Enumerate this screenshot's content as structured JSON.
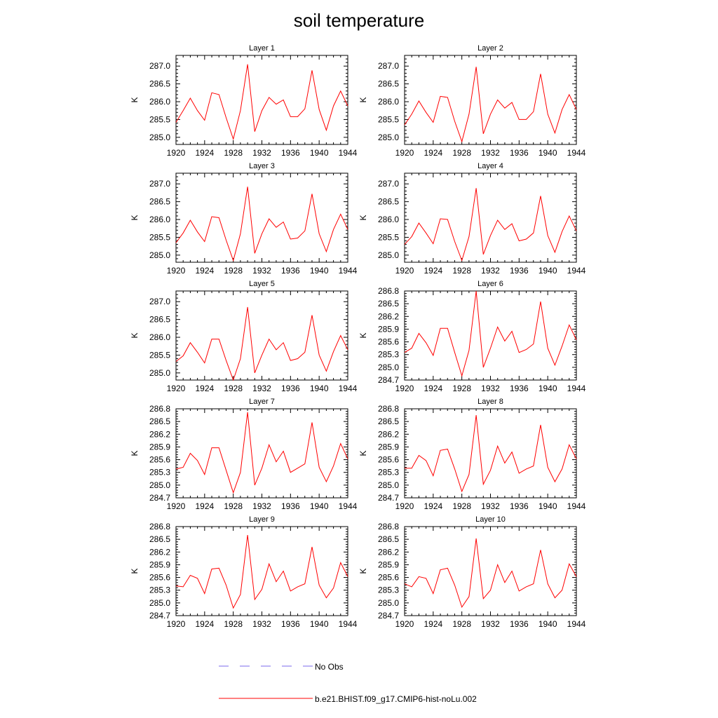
{
  "title": "soil temperature",
  "colors": {
    "model": "#ff0000",
    "obs": "#7b68ee"
  },
  "legend": {
    "obs_label": "No Obs",
    "model_label": "b.e21.BHIST.f09_g17.CMIP6-hist-noLu.002"
  },
  "chart_data": [
    {
      "type": "line",
      "title": "Layer 1",
      "ylabel": "K",
      "x": [
        1920,
        1921,
        1922,
        1923,
        1924,
        1925,
        1926,
        1927,
        1928,
        1929,
        1930,
        1931,
        1932,
        1933,
        1934,
        1935,
        1936,
        1937,
        1938,
        1939,
        1940,
        1941,
        1942,
        1943,
        1944
      ],
      "xticks": [
        1920,
        1924,
        1928,
        1932,
        1936,
        1940,
        1944
      ],
      "xlim": [
        1920,
        1944
      ],
      "yticks": [
        "285.0",
        "285.5",
        "286.0",
        "286.5",
        "287.0"
      ],
      "ylim": [
        284.8,
        287.3
      ],
      "series": [
        {
          "values": [
            285.42,
            285.75,
            286.1,
            285.75,
            285.48,
            286.25,
            286.2,
            285.55,
            284.95,
            285.75,
            287.05,
            285.16,
            285.75,
            286.12,
            285.93,
            286.05,
            285.58,
            285.58,
            285.8,
            286.88,
            285.78,
            285.2,
            285.88,
            286.3,
            285.88
          ]
        }
      ]
    },
    {
      "type": "line",
      "title": "Layer 2",
      "ylabel": "K",
      "x": [
        1920,
        1921,
        1922,
        1923,
        1924,
        1925,
        1926,
        1927,
        1928,
        1929,
        1930,
        1931,
        1932,
        1933,
        1934,
        1935,
        1936,
        1937,
        1938,
        1939,
        1940,
        1941,
        1942,
        1943,
        1944
      ],
      "xticks": [
        1920,
        1924,
        1928,
        1932,
        1936,
        1940,
        1944
      ],
      "xlim": [
        1920,
        1944
      ],
      "yticks": [
        "285.0",
        "285.5",
        "286.0",
        "286.5",
        "287.0"
      ],
      "ylim": [
        284.8,
        287.3
      ],
      "series": [
        {
          "values": [
            285.35,
            285.65,
            286.02,
            285.7,
            285.42,
            286.15,
            286.12,
            285.45,
            284.88,
            285.65,
            286.98,
            285.1,
            285.65,
            286.05,
            285.82,
            285.98,
            285.5,
            285.5,
            285.72,
            286.78,
            285.65,
            285.12,
            285.78,
            286.2,
            285.78
          ]
        }
      ]
    },
    {
      "type": "line",
      "title": "Layer 3",
      "ylabel": "K",
      "x": [
        1920,
        1921,
        1922,
        1923,
        1924,
        1925,
        1926,
        1927,
        1928,
        1929,
        1930,
        1931,
        1932,
        1933,
        1934,
        1935,
        1936,
        1937,
        1938,
        1939,
        1940,
        1941,
        1942,
        1943,
        1944
      ],
      "xticks": [
        1920,
        1924,
        1928,
        1932,
        1936,
        1940,
        1944
      ],
      "xlim": [
        1920,
        1944
      ],
      "yticks": [
        "285.0",
        "285.5",
        "286.0",
        "286.5",
        "287.0"
      ],
      "ylim": [
        284.8,
        287.3
      ],
      "series": [
        {
          "values": [
            285.35,
            285.62,
            285.98,
            285.65,
            285.38,
            286.08,
            286.05,
            285.42,
            284.85,
            285.6,
            286.92,
            285.05,
            285.6,
            286.02,
            285.78,
            285.93,
            285.45,
            285.48,
            285.68,
            286.72,
            285.6,
            285.1,
            285.72,
            286.15,
            285.72
          ]
        }
      ]
    },
    {
      "type": "line",
      "title": "Layer 4",
      "ylabel": "K",
      "x": [
        1920,
        1921,
        1922,
        1923,
        1924,
        1925,
        1926,
        1927,
        1928,
        1929,
        1930,
        1931,
        1932,
        1933,
        1934,
        1935,
        1936,
        1937,
        1938,
        1939,
        1940,
        1941,
        1942,
        1943,
        1944
      ],
      "xticks": [
        1920,
        1924,
        1928,
        1932,
        1936,
        1940,
        1944
      ],
      "xlim": [
        1920,
        1944
      ],
      "yticks": [
        "285.0",
        "285.5",
        "286.0",
        "286.5",
        "287.0"
      ],
      "ylim": [
        284.8,
        287.3
      ],
      "series": [
        {
          "values": [
            285.3,
            285.52,
            285.9,
            285.62,
            285.32,
            286.02,
            286.0,
            285.38,
            284.85,
            285.52,
            286.88,
            285.02,
            285.55,
            285.98,
            285.72,
            285.88,
            285.4,
            285.45,
            285.62,
            286.66,
            285.55,
            285.08,
            285.66,
            286.1,
            285.68
          ]
        }
      ]
    },
    {
      "type": "line",
      "title": "Layer 5",
      "ylabel": "K",
      "x": [
        1920,
        1921,
        1922,
        1923,
        1924,
        1925,
        1926,
        1927,
        1928,
        1929,
        1930,
        1931,
        1932,
        1933,
        1934,
        1935,
        1936,
        1937,
        1938,
        1939,
        1940,
        1941,
        1942,
        1943,
        1944
      ],
      "xticks": [
        1920,
        1924,
        1928,
        1932,
        1936,
        1940,
        1944
      ],
      "xlim": [
        1920,
        1944
      ],
      "yticks": [
        "285.0",
        "285.5",
        "286.0",
        "286.5",
        "287.0"
      ],
      "ylim": [
        284.8,
        287.3
      ],
      "series": [
        {
          "values": [
            285.32,
            285.48,
            285.85,
            285.58,
            285.28,
            285.95,
            285.95,
            285.35,
            284.8,
            285.4,
            286.85,
            285.0,
            285.5,
            285.95,
            285.65,
            285.85,
            285.35,
            285.4,
            285.58,
            286.62,
            285.5,
            285.05,
            285.6,
            286.05,
            285.65
          ]
        }
      ]
    },
    {
      "type": "line",
      "title": "Layer 6",
      "ylabel": "K",
      "x": [
        1920,
        1921,
        1922,
        1923,
        1924,
        1925,
        1926,
        1927,
        1928,
        1929,
        1930,
        1931,
        1932,
        1933,
        1934,
        1935,
        1936,
        1937,
        1938,
        1939,
        1940,
        1941,
        1942,
        1943,
        1944
      ],
      "xticks": [
        1920,
        1924,
        1928,
        1932,
        1936,
        1940,
        1944
      ],
      "xlim": [
        1920,
        1944
      ],
      "yticks": [
        "284.7",
        "285.0",
        "285.3",
        "285.6",
        "285.9",
        "286.2",
        "286.5",
        "286.8"
      ],
      "ylim": [
        284.7,
        286.8
      ],
      "series": [
        {
          "values": [
            285.35,
            285.45,
            285.8,
            285.58,
            285.28,
            285.92,
            285.92,
            285.35,
            284.8,
            285.4,
            286.8,
            285.0,
            285.45,
            285.95,
            285.62,
            285.85,
            285.35,
            285.42,
            285.55,
            286.55,
            285.45,
            285.05,
            285.5,
            286.0,
            285.65
          ]
        }
      ]
    },
    {
      "type": "line",
      "title": "Layer 7",
      "ylabel": "K",
      "x": [
        1920,
        1921,
        1922,
        1923,
        1924,
        1925,
        1926,
        1927,
        1928,
        1929,
        1930,
        1931,
        1932,
        1933,
        1934,
        1935,
        1936,
        1937,
        1938,
        1939,
        1940,
        1941,
        1942,
        1943,
        1944
      ],
      "xticks": [
        1920,
        1924,
        1928,
        1932,
        1936,
        1940,
        1944
      ],
      "xlim": [
        1920,
        1944
      ],
      "yticks": [
        "284.7",
        "285.0",
        "285.3",
        "285.6",
        "285.9",
        "286.2",
        "286.5",
        "286.8"
      ],
      "ylim": [
        284.7,
        286.8
      ],
      "series": [
        {
          "values": [
            285.38,
            285.42,
            285.75,
            285.58,
            285.25,
            285.88,
            285.88,
            285.35,
            284.82,
            285.3,
            286.72,
            285.0,
            285.4,
            285.95,
            285.55,
            285.8,
            285.3,
            285.4,
            285.5,
            286.48,
            285.42,
            285.08,
            285.45,
            285.98,
            285.62
          ]
        }
      ]
    },
    {
      "type": "line",
      "title": "Layer 8",
      "ylabel": "K",
      "x": [
        1920,
        1921,
        1922,
        1923,
        1924,
        1925,
        1926,
        1927,
        1928,
        1929,
        1930,
        1931,
        1932,
        1933,
        1934,
        1935,
        1936,
        1937,
        1938,
        1939,
        1940,
        1941,
        1942,
        1943,
        1944
      ],
      "xticks": [
        1920,
        1924,
        1928,
        1932,
        1936,
        1940,
        1944
      ],
      "xlim": [
        1920,
        1944
      ],
      "yticks": [
        "284.7",
        "285.0",
        "285.3",
        "285.6",
        "285.9",
        "286.2",
        "286.5",
        "286.8"
      ],
      "ylim": [
        284.7,
        286.8
      ],
      "series": [
        {
          "values": [
            285.4,
            285.4,
            285.7,
            285.58,
            285.22,
            285.82,
            285.85,
            285.38,
            284.85,
            285.25,
            286.65,
            285.02,
            285.35,
            285.92,
            285.52,
            285.78,
            285.28,
            285.38,
            285.45,
            286.42,
            285.42,
            285.08,
            285.38,
            285.95,
            285.62
          ]
        }
      ]
    },
    {
      "type": "line",
      "title": "Layer 9",
      "ylabel": "K",
      "x": [
        1920,
        1921,
        1922,
        1923,
        1924,
        1925,
        1926,
        1927,
        1928,
        1929,
        1930,
        1931,
        1932,
        1933,
        1934,
        1935,
        1936,
        1937,
        1938,
        1939,
        1940,
        1941,
        1942,
        1943,
        1944
      ],
      "xticks": [
        1920,
        1924,
        1928,
        1932,
        1936,
        1940,
        1944
      ],
      "xlim": [
        1920,
        1944
      ],
      "yticks": [
        "284.7",
        "285.0",
        "285.3",
        "285.6",
        "285.9",
        "286.2",
        "286.5",
        "286.8"
      ],
      "ylim": [
        284.7,
        286.8
      ],
      "series": [
        {
          "values": [
            285.4,
            285.38,
            285.65,
            285.58,
            285.22,
            285.8,
            285.82,
            285.42,
            284.88,
            285.2,
            286.6,
            285.08,
            285.32,
            285.92,
            285.5,
            285.75,
            285.28,
            285.38,
            285.45,
            286.32,
            285.42,
            285.12,
            285.35,
            285.95,
            285.62
          ]
        }
      ]
    },
    {
      "type": "line",
      "title": "Layer 10",
      "ylabel": "K",
      "x": [
        1920,
        1921,
        1922,
        1923,
        1924,
        1925,
        1926,
        1927,
        1928,
        1929,
        1930,
        1931,
        1932,
        1933,
        1934,
        1935,
        1936,
        1937,
        1938,
        1939,
        1940,
        1941,
        1942,
        1943,
        1944
      ],
      "xticks": [
        1920,
        1924,
        1928,
        1932,
        1936,
        1940,
        1944
      ],
      "xlim": [
        1920,
        1944
      ],
      "yticks": [
        "284.7",
        "285.0",
        "285.3",
        "285.6",
        "285.9",
        "286.2",
        "286.5",
        "286.8"
      ],
      "ylim": [
        284.7,
        286.8
      ],
      "series": [
        {
          "values": [
            285.45,
            285.38,
            285.62,
            285.58,
            285.22,
            285.78,
            285.82,
            285.42,
            284.9,
            285.15,
            286.52,
            285.1,
            285.3,
            285.9,
            285.48,
            285.75,
            285.28,
            285.38,
            285.45,
            286.25,
            285.45,
            285.12,
            285.3,
            285.92,
            285.62
          ]
        }
      ]
    }
  ]
}
